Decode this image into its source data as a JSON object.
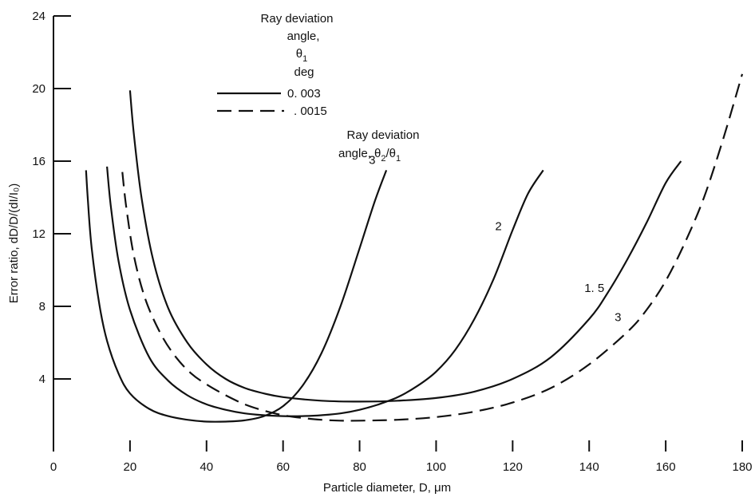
{
  "chart_data": {
    "type": "line",
    "xlabel": "Particle diameter, D, μm",
    "ylabel": "Error ratio, dD/D/(dI/I₀)",
    "xlim": [
      0,
      180
    ],
    "ylim": [
      0,
      24
    ],
    "x_ticks": [
      "0",
      "20",
      "40",
      "60",
      "80",
      "100",
      "120",
      "140",
      "160",
      "180"
    ],
    "y_ticks": [
      "4",
      "8",
      "12",
      "16",
      "20",
      "24"
    ],
    "grid": false,
    "legend": {
      "title_lines": [
        "Ray deviation",
        "angle,",
        "θ",
        "deg"
      ],
      "theta_sub": "1",
      "entries": [
        {
          "label": "0. 003",
          "style": "solid"
        },
        {
          "label": ". 0015",
          "style": "dashed"
        }
      ]
    },
    "curve_group_title": {
      "line1": "Ray deviation",
      "line2_prefix": "angle,  θ",
      "sub_a": "2",
      "slash": "/θ",
      "sub_b": "1"
    },
    "series": [
      {
        "label": "3",
        "deviation_angle": "0. 003",
        "style": "solid",
        "x": [
          8.5,
          9,
          10,
          12,
          14,
          17,
          20,
          25,
          30,
          35,
          40,
          45,
          50,
          55,
          60,
          65,
          70,
          75,
          80,
          84,
          87
        ],
        "y": [
          15.5,
          13.8,
          11.2,
          8.1,
          6.1,
          4.3,
          3.2,
          2.35,
          1.95,
          1.75,
          1.65,
          1.65,
          1.72,
          1.95,
          2.5,
          3.6,
          5.4,
          8.0,
          11.2,
          13.8,
          15.5
        ]
      },
      {
        "label": "2",
        "deviation_angle": "0. 003",
        "style": "solid",
        "x": [
          14,
          15,
          17,
          20,
          25,
          30,
          35,
          40,
          45,
          50,
          55,
          60,
          65,
          70,
          75,
          80,
          85,
          90,
          95,
          100,
          105,
          110,
          115,
          120,
          124,
          128
        ],
        "y": [
          15.7,
          13.5,
          10.5,
          7.8,
          5.2,
          3.9,
          3.1,
          2.6,
          2.3,
          2.1,
          2.0,
          1.95,
          1.95,
          2.0,
          2.1,
          2.3,
          2.6,
          3.0,
          3.6,
          4.4,
          5.6,
          7.3,
          9.5,
          12.2,
          14.2,
          15.5
        ]
      },
      {
        "label": "1. 5",
        "deviation_angle": "0. 003",
        "style": "solid",
        "x": [
          20,
          21,
          23,
          26,
          30,
          35,
          40,
          45,
          50,
          55,
          60,
          70,
          80,
          90,
          100,
          110,
          120,
          130,
          140,
          145,
          150,
          155,
          160,
          164
        ],
        "y": [
          19.9,
          17.5,
          14.0,
          10.6,
          7.9,
          6.0,
          4.8,
          4.0,
          3.5,
          3.2,
          3.0,
          2.8,
          2.75,
          2.8,
          2.95,
          3.3,
          4.0,
          5.2,
          7.3,
          8.8,
          10.6,
          12.6,
          14.8,
          16.0
        ]
      },
      {
        "label": "3",
        "deviation_angle": ". 0015",
        "style": "dashed",
        "x": [
          18,
          19,
          21,
          24,
          28,
          32,
          36,
          40,
          45,
          50,
          55,
          60,
          65,
          70,
          75,
          80,
          90,
          100,
          110,
          120,
          130,
          140,
          150,
          155,
          160,
          165,
          170,
          175,
          180
        ],
        "y": [
          15.4,
          13.5,
          10.8,
          8.4,
          6.5,
          5.2,
          4.3,
          3.7,
          3.1,
          2.6,
          2.25,
          2.0,
          1.85,
          1.75,
          1.7,
          1.7,
          1.75,
          1.9,
          2.2,
          2.7,
          3.5,
          4.8,
          6.6,
          7.8,
          9.4,
          11.5,
          14.0,
          17.2,
          20.8
        ]
      }
    ]
  }
}
